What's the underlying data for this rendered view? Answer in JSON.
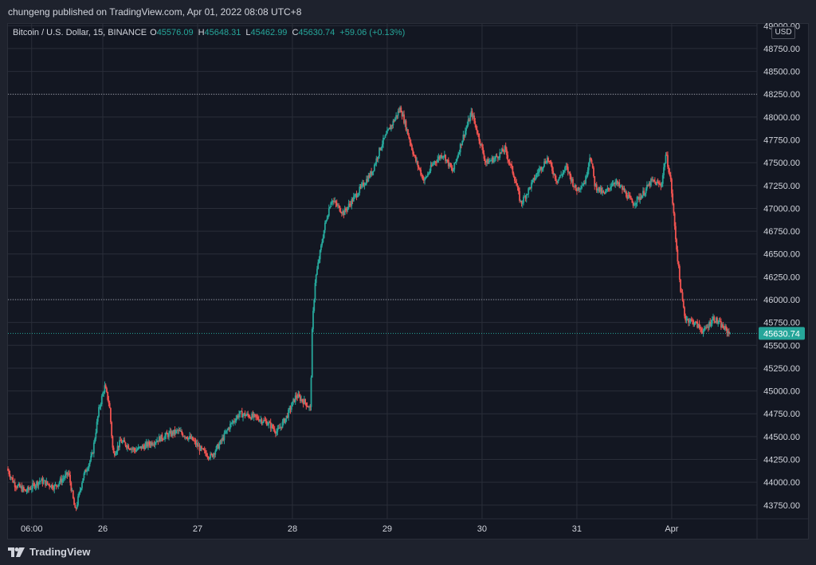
{
  "header": {
    "published": "chungeng published on TradingView.com, Apr 01, 2022 08:08 UTC+8"
  },
  "legend": {
    "symbol": "Bitcoin / U.S. Dollar, 15, BINANCE",
    "open_label": "O",
    "open": "45576.09",
    "high_label": "H",
    "high": "45648.31",
    "low_label": "L",
    "low": "45462.99",
    "close_label": "C",
    "close": "45630.74",
    "change": "+59.06 (+0.13%)"
  },
  "currency": "USD",
  "footer": {
    "brand": "TradingView"
  },
  "colors": {
    "up": "#26a69a",
    "down": "#ef5350",
    "background": "#131722",
    "grid": "#2a2e39",
    "text": "#d1d4dc",
    "dotted_line": "#9598a1"
  },
  "chart_data": {
    "type": "candlestick",
    "title": "Bitcoin / U.S. Dollar, 15, BINANCE",
    "y_ticks": [
      43750,
      44000,
      44250,
      44500,
      44750,
      45000,
      45250,
      45500,
      45750,
      46000,
      46250,
      46500,
      46750,
      47000,
      47250,
      47500,
      47750,
      48000,
      48250,
      48500,
      48750,
      49000
    ],
    "y_tick_labels": [
      "43750.00",
      "44000.00",
      "44250.00",
      "44500.00",
      "44750.00",
      "45000.00",
      "45250.00",
      "45500.00",
      "45750.00",
      "46000.00",
      "46250.00",
      "46500.00",
      "46750.00",
      "47000.00",
      "47250.00",
      "47500.00",
      "47750.00",
      "48000.00",
      "48250.00",
      "48500.00",
      "48750.00",
      "49000.00"
    ],
    "ylim": [
      43600,
      49020
    ],
    "x_ticks": [
      "06:00",
      "26",
      "27",
      "28",
      "29",
      "30",
      "31",
      "Apr"
    ],
    "x_tick_positions_days": [
      0.25,
      1.0,
      2.0,
      3.0,
      4.0,
      5.0,
      6.0,
      7.0
    ],
    "xlim_days": [
      0.0,
      7.9
    ],
    "last_price": 45630.74,
    "last_price_label": "45630.74",
    "horizontal_lines": [
      48250,
      46000
    ],
    "price_path": [
      [
        0.0,
        44150
      ],
      [
        0.08,
        43980
      ],
      [
        0.2,
        43900
      ],
      [
        0.35,
        44020
      ],
      [
        0.5,
        43950
      ],
      [
        0.65,
        44100
      ],
      [
        0.72,
        43680
      ],
      [
        0.8,
        44050
      ],
      [
        0.9,
        44300
      ],
      [
        0.97,
        44800
      ],
      [
        1.03,
        45050
      ],
      [
        1.08,
        44850
      ],
      [
        1.12,
        44300
      ],
      [
        1.2,
        44450
      ],
      [
        1.35,
        44350
      ],
      [
        1.5,
        44420
      ],
      [
        1.65,
        44500
      ],
      [
        1.8,
        44560
      ],
      [
        1.95,
        44470
      ],
      [
        2.05,
        44350
      ],
      [
        2.15,
        44280
      ],
      [
        2.25,
        44430
      ],
      [
        2.35,
        44620
      ],
      [
        2.45,
        44750
      ],
      [
        2.55,
        44730
      ],
      [
        2.65,
        44700
      ],
      [
        2.75,
        44650
      ],
      [
        2.85,
        44550
      ],
      [
        2.95,
        44720
      ],
      [
        3.05,
        44950
      ],
      [
        3.15,
        44870
      ],
      [
        3.2,
        44800
      ],
      [
        3.22,
        45700
      ],
      [
        3.25,
        46200
      ],
      [
        3.3,
        46500
      ],
      [
        3.35,
        46800
      ],
      [
        3.42,
        47100
      ],
      [
        3.55,
        46950
      ],
      [
        3.65,
        47100
      ],
      [
        3.75,
        47250
      ],
      [
        3.85,
        47400
      ],
      [
        3.95,
        47700
      ],
      [
        4.05,
        47900
      ],
      [
        4.15,
        48100
      ],
      [
        4.22,
        47850
      ],
      [
        4.3,
        47550
      ],
      [
        4.4,
        47300
      ],
      [
        4.5,
        47500
      ],
      [
        4.6,
        47600
      ],
      [
        4.7,
        47400
      ],
      [
        4.8,
        47750
      ],
      [
        4.9,
        48050
      ],
      [
        4.97,
        47800
      ],
      [
        5.05,
        47500
      ],
      [
        5.15,
        47550
      ],
      [
        5.25,
        47650
      ],
      [
        5.35,
        47350
      ],
      [
        5.42,
        47050
      ],
      [
        5.5,
        47200
      ],
      [
        5.6,
        47400
      ],
      [
        5.7,
        47550
      ],
      [
        5.8,
        47300
      ],
      [
        5.9,
        47450
      ],
      [
        6.0,
        47200
      ],
      [
        6.1,
        47300
      ],
      [
        6.15,
        47600
      ],
      [
        6.2,
        47250
      ],
      [
        6.3,
        47150
      ],
      [
        6.4,
        47300
      ],
      [
        6.5,
        47200
      ],
      [
        6.6,
        47050
      ],
      [
        6.7,
        47150
      ],
      [
        6.8,
        47300
      ],
      [
        6.9,
        47250
      ],
      [
        6.95,
        47600
      ],
      [
        7.0,
        47300
      ],
      [
        7.05,
        46700
      ],
      [
        7.1,
        46150
      ],
      [
        7.15,
        45800
      ],
      [
        7.25,
        45750
      ],
      [
        7.35,
        45650
      ],
      [
        7.45,
        45800
      ],
      [
        7.55,
        45700
      ],
      [
        7.62,
        45631
      ]
    ]
  }
}
